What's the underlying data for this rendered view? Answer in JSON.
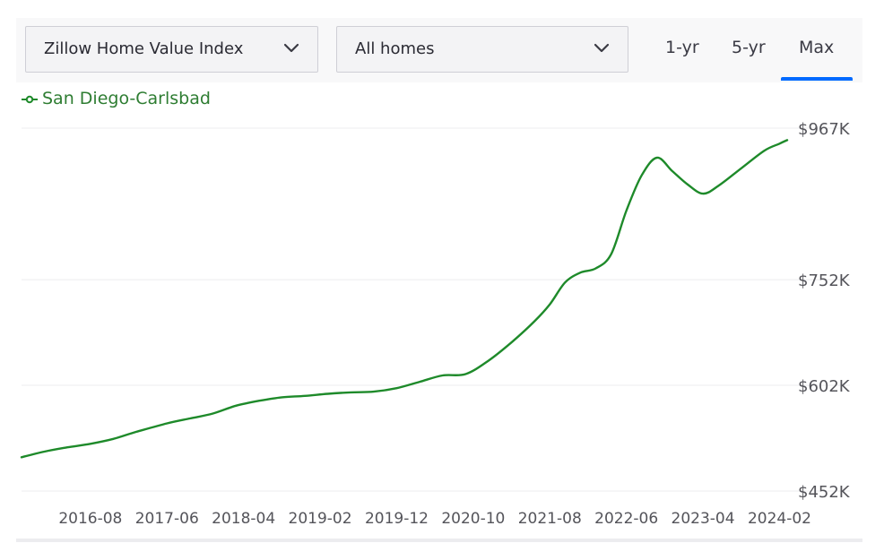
{
  "controls": {
    "metric_select": "Zillow Home Value Index",
    "home_type_select": "All homes",
    "tabs": [
      {
        "label": "1-yr",
        "active": false
      },
      {
        "label": "5-yr",
        "active": false
      },
      {
        "label": "Max",
        "active": true
      }
    ],
    "accent_color": "#006aff"
  },
  "chart_data": {
    "type": "line",
    "title": "",
    "xlabel": "",
    "ylabel": "",
    "series": [
      {
        "name": "San Diego-Carlsbad",
        "color": "#1e8a2a",
        "points": [
          [
            "2015-11",
            500
          ],
          [
            "2016-02",
            508
          ],
          [
            "2016-05",
            514
          ],
          [
            "2016-08",
            519
          ],
          [
            "2016-11",
            526
          ],
          [
            "2017-02",
            536
          ],
          [
            "2017-06",
            548
          ],
          [
            "2017-09",
            555
          ],
          [
            "2017-12",
            562
          ],
          [
            "2018-03",
            573
          ],
          [
            "2018-06",
            580
          ],
          [
            "2018-09",
            585
          ],
          [
            "2018-12",
            587
          ],
          [
            "2019-03",
            590
          ],
          [
            "2019-06",
            592
          ],
          [
            "2019-09",
            593
          ],
          [
            "2019-12",
            598
          ],
          [
            "2020-03",
            607
          ],
          [
            "2020-06",
            616
          ],
          [
            "2020-09",
            618
          ],
          [
            "2020-12",
            637
          ],
          [
            "2021-03",
            663
          ],
          [
            "2021-06",
            693
          ],
          [
            "2021-08",
            717
          ],
          [
            "2021-10",
            748
          ],
          [
            "2021-12",
            762
          ],
          [
            "2022-02",
            768
          ],
          [
            "2022-04",
            788
          ],
          [
            "2022-06",
            850
          ],
          [
            "2022-08",
            900
          ],
          [
            "2022-10",
            925
          ],
          [
            "2022-12",
            906
          ],
          [
            "2023-02",
            887
          ],
          [
            "2023-04",
            874
          ],
          [
            "2023-06",
            885
          ],
          [
            "2023-09",
            910
          ],
          [
            "2023-12",
            935
          ],
          [
            "2024-02",
            945
          ],
          [
            "2024-03",
            950
          ]
        ]
      }
    ],
    "x_ticks": [
      "2016-08",
      "2017-06",
      "2018-04",
      "2019-02",
      "2019-12",
      "2020-10",
      "2021-08",
      "2022-06",
      "2023-04",
      "2024-02"
    ],
    "y_ticks": [
      {
        "value": 967,
        "label": "$967K"
      },
      {
        "value": 752,
        "label": "$752K"
      },
      {
        "value": 602,
        "label": "$602K"
      },
      {
        "value": 452,
        "label": "$452K"
      }
    ],
    "x_range": [
      "2015-11",
      "2024-03"
    ],
    "y_range": [
      452,
      967
    ],
    "grid": true,
    "legend_position": "top-left",
    "y_axis_side": "right"
  }
}
